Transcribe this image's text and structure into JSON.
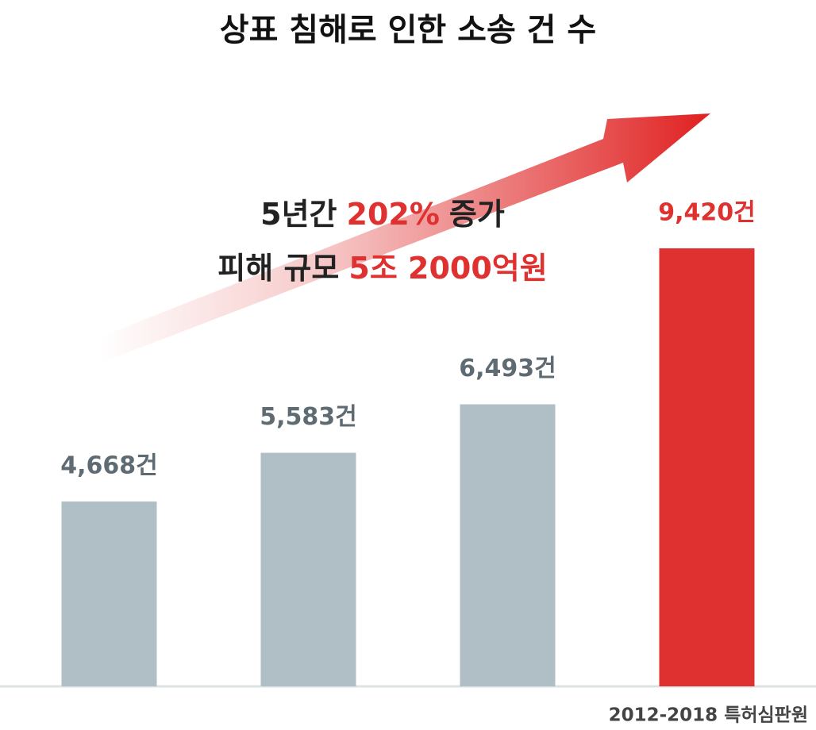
{
  "chart_data": {
    "type": "bar",
    "title": "상표 침해로 인한 소송 건 수",
    "values": [
      4668,
      5583,
      6493,
      9420
    ],
    "value_labels": [
      "4,668건",
      "5,583건",
      "6,493건",
      "9,420건"
    ],
    "colors": [
      "#b0bec5",
      "#b0bec5",
      "#b0bec5",
      "#e03131"
    ],
    "value_label_colors": [
      "#5f6b73",
      "#5f6b73",
      "#5f6b73",
      "#e03131"
    ],
    "ylim": [
      1200,
      10000
    ],
    "annotations": [
      [
        {
          "text": "5년간"
        },
        {
          "text": "202%",
          "color": "#e03131"
        },
        {
          "text": "증가"
        }
      ],
      [
        {
          "text": "피해 규모"
        },
        {
          "text": "5조 2000억원",
          "color": "#e03131"
        }
      ]
    ],
    "source": "2012-2018 특허심판원"
  }
}
